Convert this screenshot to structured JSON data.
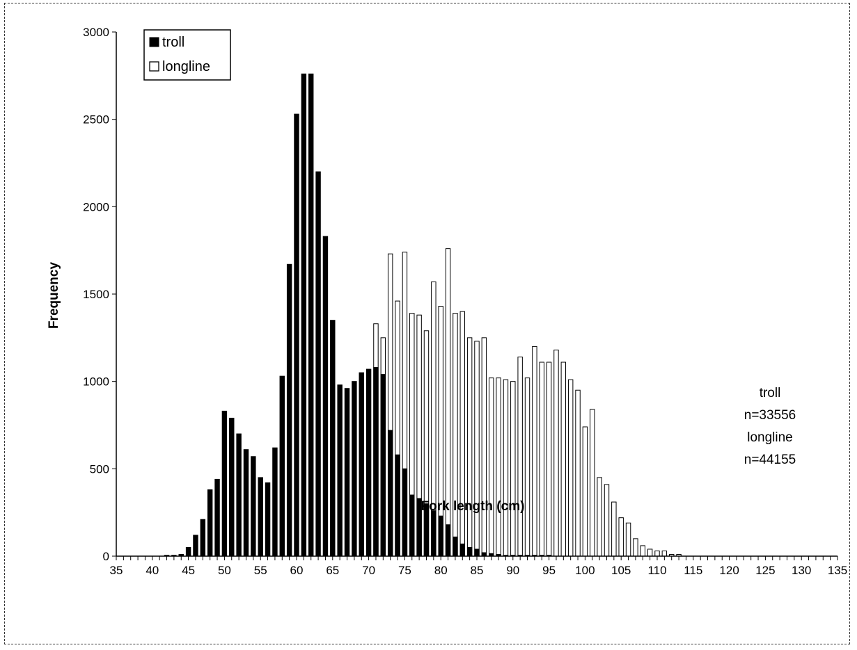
{
  "chart_data": {
    "type": "bar",
    "title": "",
    "xlabel": "Fork length (cm)",
    "ylabel": "Frequency",
    "xlim": [
      35,
      135
    ],
    "ylim": [
      0,
      3000
    ],
    "x_ticks": [
      35,
      40,
      45,
      50,
      55,
      60,
      65,
      70,
      75,
      80,
      85,
      90,
      95,
      100,
      105,
      110,
      115,
      120,
      125,
      130,
      135
    ],
    "y_ticks": [
      0,
      500,
      1000,
      1500,
      2000,
      2500,
      3000
    ],
    "grid": false,
    "legend": "top-left",
    "x": [
      35,
      36,
      37,
      38,
      39,
      40,
      41,
      42,
      43,
      44,
      45,
      46,
      47,
      48,
      49,
      50,
      51,
      52,
      53,
      54,
      55,
      56,
      57,
      58,
      59,
      60,
      61,
      62,
      63,
      64,
      65,
      66,
      67,
      68,
      69,
      70,
      71,
      72,
      73,
      74,
      75,
      76,
      77,
      78,
      79,
      80,
      81,
      82,
      83,
      84,
      85,
      86,
      87,
      88,
      89,
      90,
      91,
      92,
      93,
      94,
      95,
      96,
      97,
      98,
      99,
      100,
      101,
      102,
      103,
      104,
      105,
      106,
      107,
      108,
      109,
      110,
      111,
      112,
      113,
      114,
      115,
      116,
      117,
      118,
      119,
      120,
      121,
      122,
      123,
      124,
      125,
      126,
      127,
      128,
      129,
      130,
      131,
      132,
      133,
      134
    ],
    "series": [
      {
        "name": "troll",
        "color": "#000000",
        "values": [
          0,
          0,
          0,
          0,
          0,
          0,
          0,
          5,
          5,
          10,
          50,
          120,
          210,
          380,
          440,
          830,
          790,
          700,
          610,
          570,
          450,
          420,
          620,
          1030,
          1670,
          2530,
          2760,
          2760,
          2200,
          1830,
          1350,
          980,
          960,
          1000,
          1050,
          1070,
          1080,
          1040,
          720,
          580,
          500,
          350,
          330,
          300,
          260,
          230,
          180,
          110,
          70,
          50,
          40,
          20,
          15,
          10,
          5,
          5,
          5,
          5,
          5,
          5,
          5,
          0,
          0,
          0,
          0,
          0,
          0,
          0,
          0,
          0,
          0,
          0,
          0,
          0,
          0,
          0,
          0,
          0,
          0,
          0,
          0,
          0,
          0,
          0,
          0,
          0,
          0,
          0,
          0,
          0,
          0,
          0,
          0,
          0,
          0,
          0,
          0,
          0,
          0,
          0
        ]
      },
      {
        "name": "longline",
        "color": "#ffffff",
        "values": [
          0,
          0,
          0,
          0,
          0,
          0,
          0,
          0,
          0,
          0,
          0,
          0,
          0,
          0,
          0,
          0,
          0,
          0,
          0,
          0,
          0,
          0,
          0,
          0,
          0,
          0,
          0,
          0,
          0,
          0,
          0,
          0,
          0,
          0,
          0,
          0,
          1330,
          1250,
          1730,
          1460,
          1740,
          1390,
          1380,
          1290,
          1570,
          1430,
          1760,
          1390,
          1400,
          1250,
          1230,
          1250,
          1020,
          1020,
          1010,
          1000,
          1140,
          1020,
          1200,
          1110,
          1110,
          1180,
          1110,
          1010,
          950,
          740,
          840,
          450,
          410,
          310,
          220,
          190,
          100,
          60,
          40,
          30,
          30,
          10,
          10,
          0,
          0,
          0,
          0,
          0,
          0,
          0,
          0,
          0,
          0,
          0,
          0,
          0,
          0,
          0,
          0,
          0,
          0,
          0,
          0,
          0
        ]
      }
    ],
    "annotation": {
      "troll_label": "troll",
      "troll_n": "n=33556",
      "longline_label": "longline",
      "longline_n": "n=44155"
    }
  }
}
